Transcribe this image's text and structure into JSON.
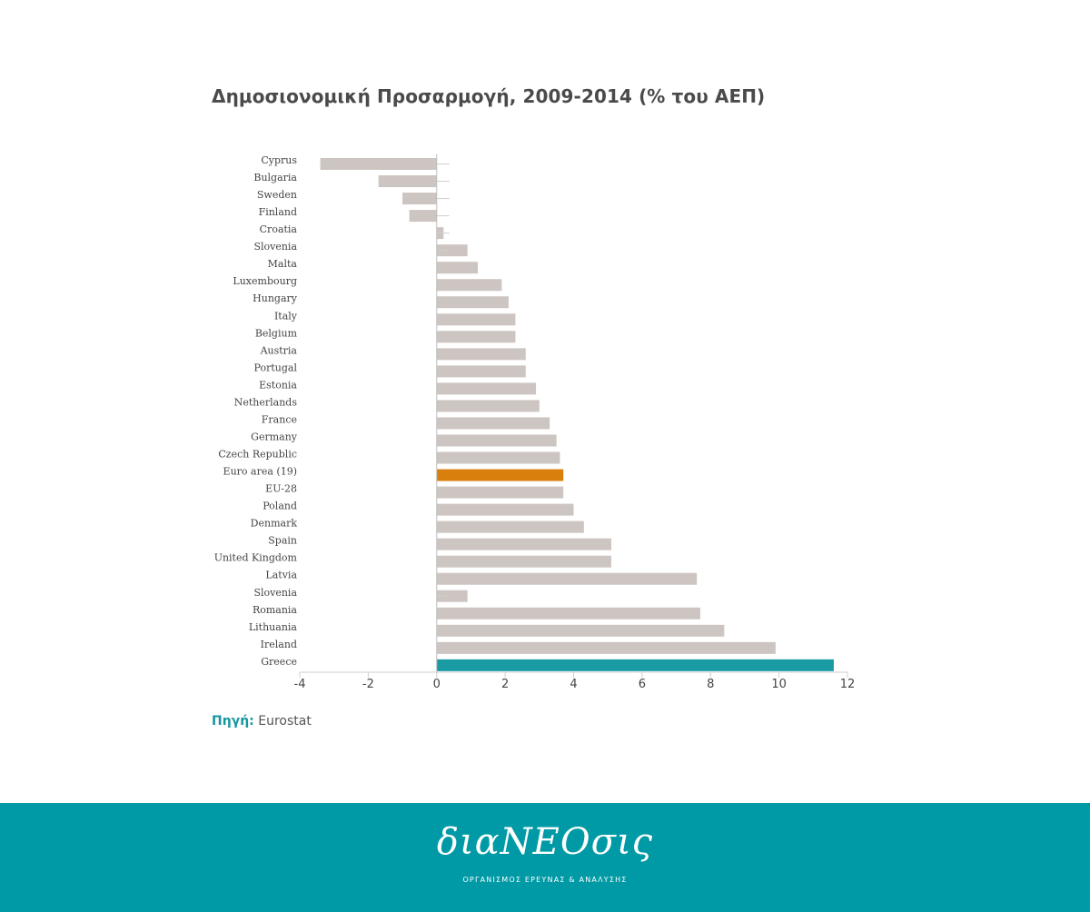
{
  "chart_data": {
    "type": "bar",
    "orientation": "horizontal",
    "title": "Δημοσιονομική Προσαρμογή, 2009-2014 (% του ΑΕΠ)",
    "categories": [
      "Cyprus",
      "Bulgaria",
      "Sweden",
      "Finland",
      "Croatia",
      "Slovenia",
      "Malta",
      "Luxembourg",
      "Hungary",
      "Italy",
      "Belgium",
      "Austria",
      "Portugal",
      "Estonia",
      "Netherlands",
      "France",
      "Germany",
      "Czech Republic",
      "Euro area (19)",
      "EU-28",
      "Poland",
      "Denmark",
      "Spain",
      "United Kingdom",
      "Latvia",
      "Slovenia",
      "Romania",
      "Lithuania",
      "Ireland",
      "Greece"
    ],
    "values": [
      -3.4,
      -1.7,
      -1.0,
      -0.8,
      0.2,
      0.9,
      1.2,
      1.9,
      2.1,
      2.3,
      2.3,
      2.6,
      2.6,
      2.9,
      3.0,
      3.3,
      3.5,
      3.6,
      3.7,
      3.7,
      4.0,
      4.3,
      5.1,
      5.1,
      7.6,
      0.9,
      7.7,
      8.4,
      9.9,
      11.6
    ],
    "highlights": {
      "Euro area (19)": "#d97f0e",
      "Greece": "#1a9ba4"
    },
    "default_color": "#cdc5c1",
    "xlim": [
      -4,
      12
    ],
    "xticks": [
      -4,
      -2,
      0,
      2,
      4,
      6,
      8,
      10,
      12
    ],
    "xlabel": "",
    "ylabel": "",
    "grid": false,
    "legend": "none"
  },
  "source": {
    "label": "Πηγή:",
    "value": "Eurostat"
  },
  "footer": {
    "brand": "διαΝΕΟσις",
    "tagline": "ΟΡΓΑΝΙΣΜΟΣ ΕΡΕΥΝΑΣ & ΑΝΑΛΥΣΗΣ",
    "background_color": "#009aa6"
  }
}
